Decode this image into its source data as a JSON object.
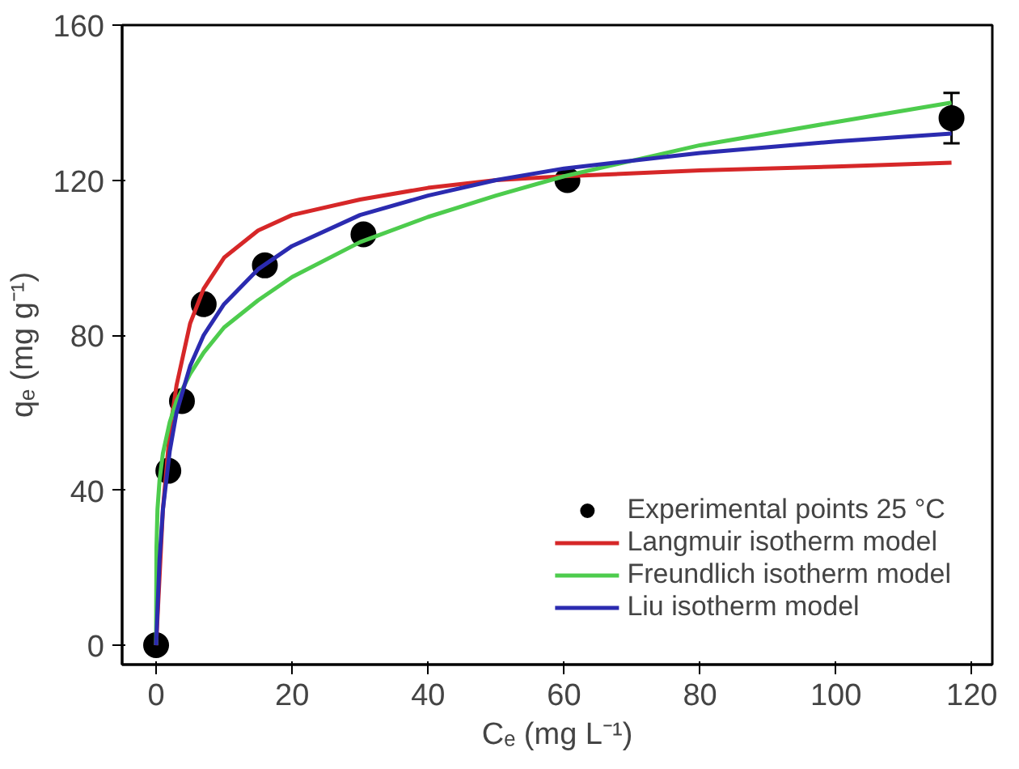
{
  "chart_data": {
    "type": "line",
    "xlabel": "Cₑ (mg L⁻¹)",
    "ylabel": "qₑ (mg g⁻¹)",
    "xlim": [
      -5,
      123
    ],
    "ylim": [
      -5,
      160
    ],
    "xticks": [
      0,
      20,
      40,
      60,
      80,
      100,
      120
    ],
    "yticks": [
      0,
      40,
      80,
      120,
      160
    ],
    "grid": false,
    "legend": "bottom right",
    "series": [
      {
        "name": "Experimental points 25 °C",
        "type": "scatter",
        "marker": "circle",
        "color": "#000000",
        "x": [
          0,
          1.8,
          3.8,
          7,
          16,
          30.5,
          60.5,
          117
        ],
        "values": [
          0,
          45,
          63,
          88,
          98,
          106,
          120,
          136
        ],
        "errors": [
          null,
          null,
          null,
          null,
          null,
          null,
          null,
          6.5
        ]
      },
      {
        "name": "Langmuir isotherm model",
        "color": "#d62728",
        "x": [
          0,
          1,
          2,
          3,
          5,
          7,
          10,
          15,
          20,
          30,
          40,
          50,
          60,
          80,
          100,
          117
        ],
        "values": [
          0,
          35,
          55,
          67,
          83,
          92,
          100,
          107,
          111,
          115,
          118,
          120,
          121,
          122.5,
          123.5,
          124.5
        ]
      },
      {
        "name": "Freundlich isotherm model",
        "color": "#4dcc4d",
        "x": [
          0,
          0.05,
          0.2,
          0.5,
          1,
          2,
          3,
          5,
          7,
          10,
          15,
          20,
          30,
          40,
          50,
          60,
          80,
          100,
          117
        ],
        "values": [
          0,
          25,
          35,
          42.5,
          49.5,
          57.5,
          63,
          70,
          75.5,
          82,
          89,
          95,
          104,
          110.5,
          116,
          121,
          129,
          135,
          140
        ]
      },
      {
        "name": "Liu isotherm model",
        "color": "#2b2bb0",
        "x": [
          0,
          0.5,
          1,
          2,
          3,
          5,
          7,
          10,
          15,
          20,
          30,
          40,
          50,
          60,
          80,
          100,
          117
        ],
        "values": [
          0,
          22,
          35,
          50,
          60,
          72,
          80,
          88,
          97,
          103,
          111,
          116,
          120,
          123,
          127,
          130,
          132
        ]
      }
    ]
  }
}
